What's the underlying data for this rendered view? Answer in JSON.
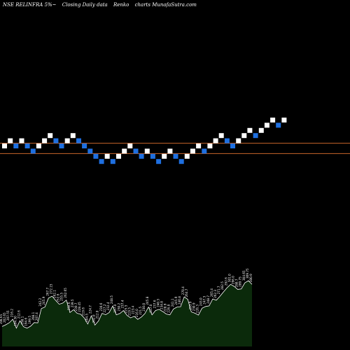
{
  "header": {
    "symbol": "NSE RELINFRA 5%~",
    "chart_desc": "Closing Daily data",
    "chart_kind": "Renko",
    "site": "charts MunafaSutra.com"
  },
  "colors": {
    "background": "#000000",
    "up_brick": "#ffffff",
    "down_brick": "#1e6fe0",
    "line": "#c8662a",
    "volume_fill": "#0b2a0b",
    "volume_outline": "#ffffff",
    "volume_label": "#ffffff"
  },
  "chart_data": [
    {
      "type": "renko",
      "bricks": [
        {
          "level": 0,
          "dir": "up"
        },
        {
          "level": 1,
          "dir": "up"
        },
        {
          "level": 0,
          "dir": "down"
        },
        {
          "level": 1,
          "dir": "up"
        },
        {
          "level": 0,
          "dir": "down"
        },
        {
          "level": -1,
          "dir": "down"
        },
        {
          "level": 0,
          "dir": "up"
        },
        {
          "level": 1,
          "dir": "up"
        },
        {
          "level": 2,
          "dir": "up"
        },
        {
          "level": 1,
          "dir": "down"
        },
        {
          "level": 0,
          "dir": "down"
        },
        {
          "level": 1,
          "dir": "up"
        },
        {
          "level": 2,
          "dir": "up"
        },
        {
          "level": 1,
          "dir": "down"
        },
        {
          "level": 0,
          "dir": "down"
        },
        {
          "level": -1,
          "dir": "down"
        },
        {
          "level": -2,
          "dir": "down"
        },
        {
          "level": -3,
          "dir": "down"
        },
        {
          "level": -2,
          "dir": "up"
        },
        {
          "level": -3,
          "dir": "down"
        },
        {
          "level": -2,
          "dir": "up"
        },
        {
          "level": -1,
          "dir": "up"
        },
        {
          "level": 0,
          "dir": "up"
        },
        {
          "level": -1,
          "dir": "down"
        },
        {
          "level": -2,
          "dir": "down"
        },
        {
          "level": -1,
          "dir": "up"
        },
        {
          "level": -2,
          "dir": "down"
        },
        {
          "level": -3,
          "dir": "down"
        },
        {
          "level": -2,
          "dir": "up"
        },
        {
          "level": -1,
          "dir": "up"
        },
        {
          "level": -2,
          "dir": "down"
        },
        {
          "level": -3,
          "dir": "down"
        },
        {
          "level": -2,
          "dir": "up"
        },
        {
          "level": -1,
          "dir": "up"
        },
        {
          "level": 0,
          "dir": "up"
        },
        {
          "level": -1,
          "dir": "down"
        },
        {
          "level": 0,
          "dir": "up"
        },
        {
          "level": 1,
          "dir": "up"
        },
        {
          "level": 2,
          "dir": "up"
        },
        {
          "level": 1,
          "dir": "down"
        },
        {
          "level": 0,
          "dir": "down"
        },
        {
          "level": 1,
          "dir": "up"
        },
        {
          "level": 2,
          "dir": "up"
        },
        {
          "level": 3,
          "dir": "up"
        },
        {
          "level": 2,
          "dir": "down"
        },
        {
          "level": 3,
          "dir": "up"
        },
        {
          "level": 4,
          "dir": "up"
        },
        {
          "level": 5,
          "dir": "up"
        },
        {
          "level": 4,
          "dir": "down"
        },
        {
          "level": 5,
          "dir": "up"
        }
      ],
      "reference_lines": [
        1,
        -1
      ]
    },
    {
      "type": "area",
      "series": [
        {
          "values": [
            198.65,
            202.65,
            207.55,
            216.2,
            194.5,
            212.6,
            198.1,
            194.6,
            199.5,
            208.1,
            207.4,
            242.2,
            245.9,
            267.7,
            272.15,
            262.1,
            252.6,
            255.5,
            262.65,
            232.6,
            239.5,
            230.7,
            228.45,
            219.6,
            204.5,
            224.7,
            202.0,
            212.0,
            230.6,
            227.2,
            232.4,
            248.5,
            227.0,
            230.2,
            237.4,
            225.5,
            219.5,
            223.4,
            216.0,
            221.5,
            230.0,
            245.8,
            227.0,
            237.6,
            240.3,
            234.8,
            228.9,
            226.8,
            241.1,
            245.9,
            246.8,
            270.4,
            264.7,
            233.9,
            230.9,
            226.3,
            243.0,
            247.3,
            248.7,
            265.4,
            262.3,
            271.7,
            282.5,
            292.6,
            301.0,
            296.0,
            288.7,
            289.75,
            304.65,
            309.75,
            300.9
          ]
        }
      ],
      "labels": [
        "198.65",
        "202.65",
        "207.55",
        "216.2",
        "194.50",
        "212.6",
        "198.1",
        "194.6",
        "199.5",
        "208.1",
        "207.4",
        "242.2",
        "245.9",
        "267.7",
        "272.15",
        "262.1",
        "252.6",
        "255.5",
        "262.65",
        "232.6",
        "239.5",
        "230.7",
        "228.45",
        "219.6",
        "204.5",
        "224.7",
        "202.0",
        "212.0",
        "230.6",
        "227.2",
        "232.4",
        "248.5",
        "227.0",
        "230.2",
        "237.4",
        "225.5",
        "219.5",
        "223.4",
        "216.0",
        "221.5",
        "230.0",
        "245.8",
        "227.0",
        "237.6",
        "240.3",
        "234.8",
        "228.9",
        "226.8",
        "241.1",
        "245.9",
        "246.8",
        "270.4",
        "264.7",
        "233.9",
        "230.9",
        "226.3",
        "243.0",
        "247.3",
        "248.7",
        "265.4",
        "262.3",
        "271.7",
        "282.5",
        "292.6",
        "301.0",
        "296.0",
        "288.7",
        "289.75",
        "304.65",
        "309.75",
        "300.9"
      ],
      "ylim": [
        150,
        320
      ]
    }
  ]
}
